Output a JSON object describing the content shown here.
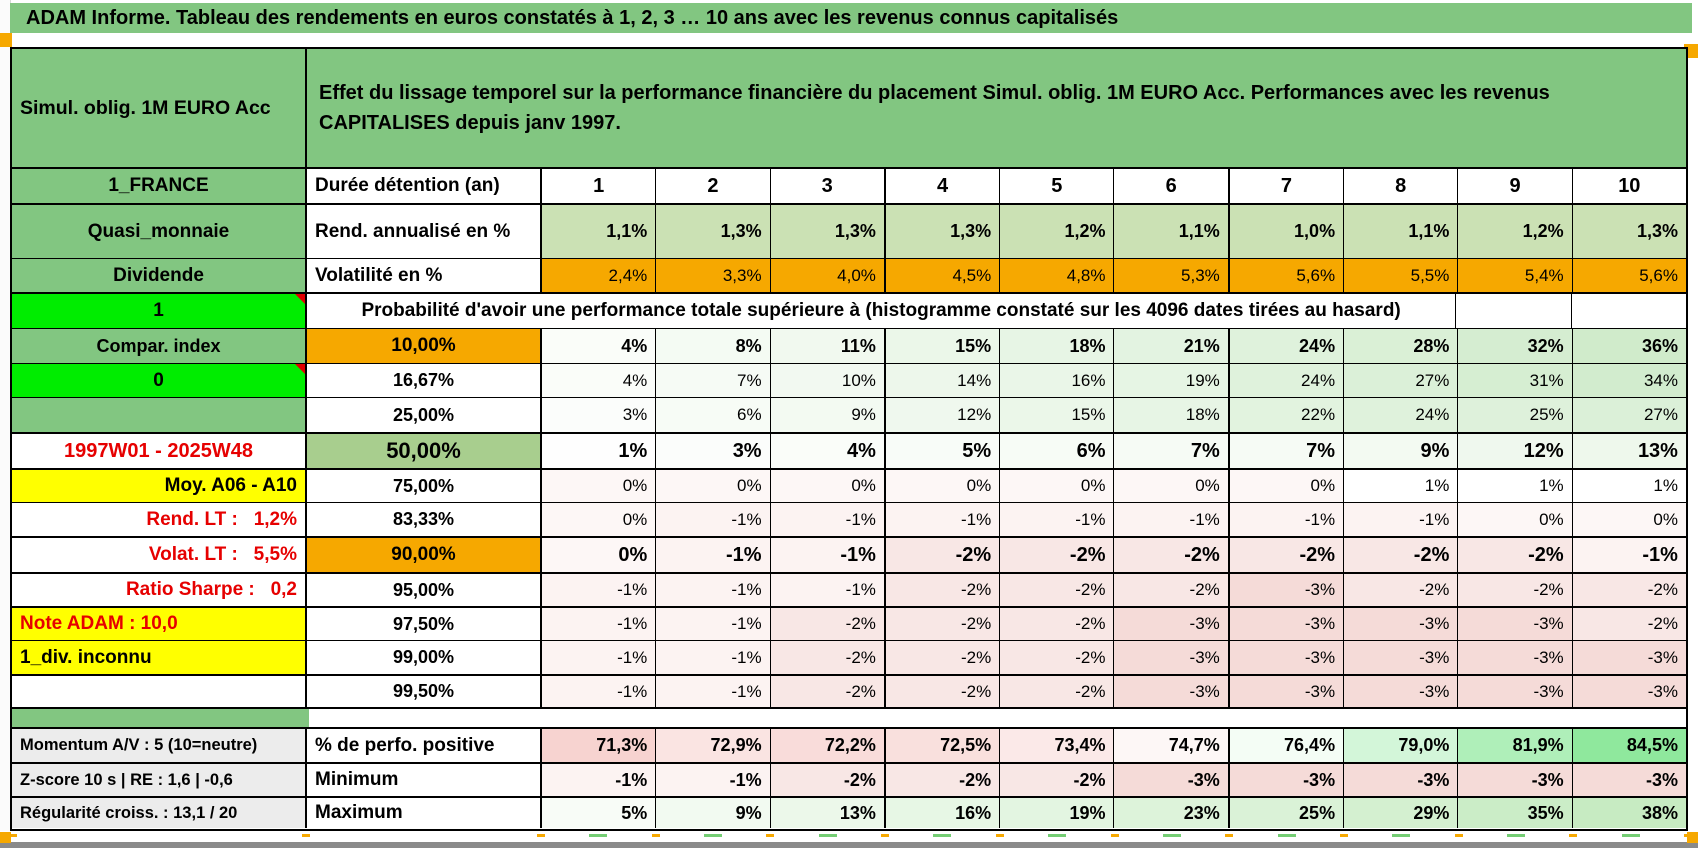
{
  "title": "ADAM Informe. Tableau des rendements en euros constatés à 1, 2, 3 … 10 ans avec les revenus connus capitalisés",
  "colors": {
    "header_green": "#82c681",
    "bright_green": "#00ed00",
    "orange": "#f6a800",
    "yellow": "#ffff00",
    "light_green": "#cbe1b4",
    "medium_green": "#a8ce8e",
    "red_text": "#e60000",
    "gray_label": "#ececec",
    "positive_green": "#8fe89d",
    "negative_pink": "#f3d5d2"
  },
  "table": {
    "corner": "Simul. oblig. 1M EURO Acc",
    "description": "Effet du lissage temporel sur la performance financière du placement Simul. oblig. 1M EURO Acc. Performances avec les revenus CAPITALISES depuis janv 1997.",
    "header_row": {
      "label": "1_FRANCE",
      "title": "Durée détention (an)",
      "years": [
        "1",
        "2",
        "3",
        "4",
        "5",
        "6",
        "7",
        "8",
        "9",
        "10"
      ]
    },
    "metric_rows": [
      {
        "label": "Quasi_monnaie",
        "title": "Rend. annualisé en %",
        "values": [
          "1,1%",
          "1,3%",
          "1,3%",
          "1,3%",
          "1,2%",
          "1,1%",
          "1,0%",
          "1,1%",
          "1,2%",
          "1,3%"
        ]
      },
      {
        "label": "Dividende",
        "title": "Volatilité en %",
        "values": [
          "2,4%",
          "3,3%",
          "4,0%",
          "4,5%",
          "4,8%",
          "5,3%",
          "5,6%",
          "5,5%",
          "5,4%",
          "5,6%"
        ]
      }
    ],
    "probability_header": {
      "label": "1",
      "text": "Probabilité d'avoir une performance totale supérieure à (histogramme constaté sur les 4096 dates tirées au hasard)"
    },
    "probability_rows": [
      {
        "label": "Compar. index",
        "threshold": "10,00%",
        "values": [
          "4%",
          "8%",
          "11%",
          "15%",
          "18%",
          "21%",
          "24%",
          "28%",
          "32%",
          "36%"
        ]
      },
      {
        "label": "0",
        "threshold": "16,67%",
        "values": [
          "4%",
          "7%",
          "10%",
          "14%",
          "16%",
          "19%",
          "24%",
          "27%",
          "31%",
          "34%"
        ]
      },
      {
        "label": "",
        "threshold": "25,00%",
        "values": [
          "3%",
          "6%",
          "9%",
          "12%",
          "15%",
          "18%",
          "22%",
          "24%",
          "25%",
          "27%"
        ]
      },
      {
        "label": "1997W01 - 2025W48",
        "threshold": "50,00%",
        "values": [
          "1%",
          "3%",
          "4%",
          "5%",
          "6%",
          "7%",
          "7%",
          "9%",
          "12%",
          "13%"
        ]
      },
      {
        "label": "Moy. A06 - A10",
        "threshold": "75,00%",
        "values": [
          "0%",
          "0%",
          "0%",
          "0%",
          "0%",
          "0%",
          "0%",
          "1%",
          "1%",
          "1%"
        ]
      },
      {
        "label": "Rend. LT :   1,2%",
        "threshold": "83,33%",
        "values": [
          "0%",
          "-1%",
          "-1%",
          "-1%",
          "-1%",
          "-1%",
          "-1%",
          "-1%",
          "0%",
          "0%"
        ]
      },
      {
        "label": "Volat. LT :   5,5%",
        "threshold": "90,00%",
        "values": [
          "0%",
          "-1%",
          "-1%",
          "-2%",
          "-2%",
          "-2%",
          "-2%",
          "-2%",
          "-2%",
          "-1%"
        ]
      },
      {
        "label": "Ratio Sharpe :   0,2",
        "threshold": "95,00%",
        "values": [
          "-1%",
          "-1%",
          "-1%",
          "-2%",
          "-2%",
          "-2%",
          "-3%",
          "-2%",
          "-2%",
          "-2%"
        ]
      },
      {
        "label": "Note ADAM : 10,0",
        "threshold": "97,50%",
        "values": [
          "-1%",
          "-1%",
          "-2%",
          "-2%",
          "-2%",
          "-3%",
          "-3%",
          "-3%",
          "-3%",
          "-2%"
        ]
      },
      {
        "label": "1_div. inconnu",
        "threshold": "99,00%",
        "values": [
          "-1%",
          "-1%",
          "-2%",
          "-2%",
          "-2%",
          "-3%",
          "-3%",
          "-3%",
          "-3%",
          "-3%"
        ]
      },
      {
        "label": "",
        "threshold": "99,50%",
        "values": [
          "-1%",
          "-1%",
          "-2%",
          "-2%",
          "-2%",
          "-3%",
          "-3%",
          "-3%",
          "-3%",
          "-3%"
        ]
      }
    ],
    "summary_rows": [
      {
        "label": "Momentum A/V : 5 (10=neutre)",
        "title": "% de perfo. positive",
        "values": [
          "71,3%",
          "72,9%",
          "72,2%",
          "72,5%",
          "73,4%",
          "74,7%",
          "76,4%",
          "79,0%",
          "81,9%",
          "84,5%"
        ]
      },
      {
        "label": "Z-score 10 s | RE : 1,6 | -0,6",
        "title": "Minimum",
        "values": [
          "-1%",
          "-1%",
          "-2%",
          "-2%",
          "-2%",
          "-3%",
          "-3%",
          "-3%",
          "-3%",
          "-3%"
        ]
      },
      {
        "label": "Régularité croiss. : 13,1 / 20",
        "title": "Maximum",
        "values": [
          "5%",
          "9%",
          "13%",
          "16%",
          "19%",
          "23%",
          "25%",
          "29%",
          "35%",
          "38%"
        ]
      }
    ]
  }
}
